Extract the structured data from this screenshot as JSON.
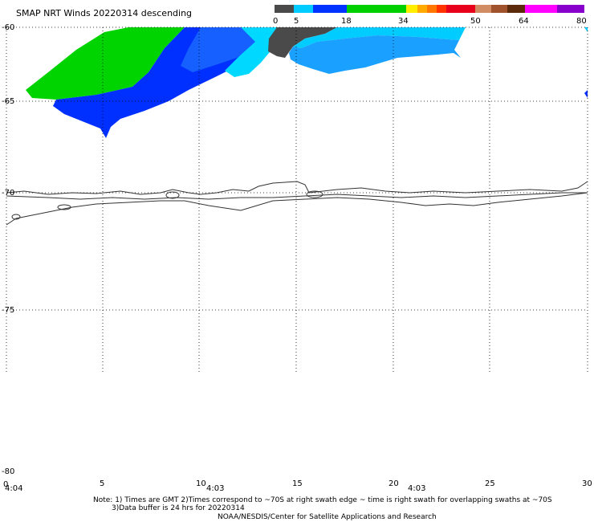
{
  "title": "SMAP NRT Winds  20220314 descending",
  "colorbar": {
    "tick_labels": [
      "0",
      "5",
      "18",
      "34",
      "50",
      "64",
      "80"
    ],
    "colors": [
      "#4a4a4a",
      "#00b4ff",
      "#0028ff",
      "#00d000",
      "#ffee00",
      "#ff8800",
      "#ff0000",
      "#8b4513",
      "#d2a07a",
      "#ff00ff",
      "#8800cc"
    ]
  },
  "y_axis": {
    "labels": [
      "-60",
      "-65",
      "-70",
      "-75",
      "-80"
    ]
  },
  "x_axis": {
    "labels": [
      "0",
      "5",
      "10",
      "15",
      "20",
      "25",
      "30"
    ],
    "time_labels": [
      "4:04",
      "4:03",
      "4:03"
    ]
  },
  "notes": {
    "line1": "Note: 1) Times are GMT 2)Times correspond to ~70S at right swath edge ~ time is right swath for overlapping swaths at ~70S",
    "line2": "3)Data buffer is 24 hrs for 20220314",
    "line3": "NOAA/NESDIS/Center for Satellite Applications and Research"
  },
  "colors": {
    "calm": "#4a4a4a",
    "cyan": "#00ccff",
    "light_blue": "#1aa0ff",
    "blue": "#0030ff",
    "green": "#00d400"
  }
}
